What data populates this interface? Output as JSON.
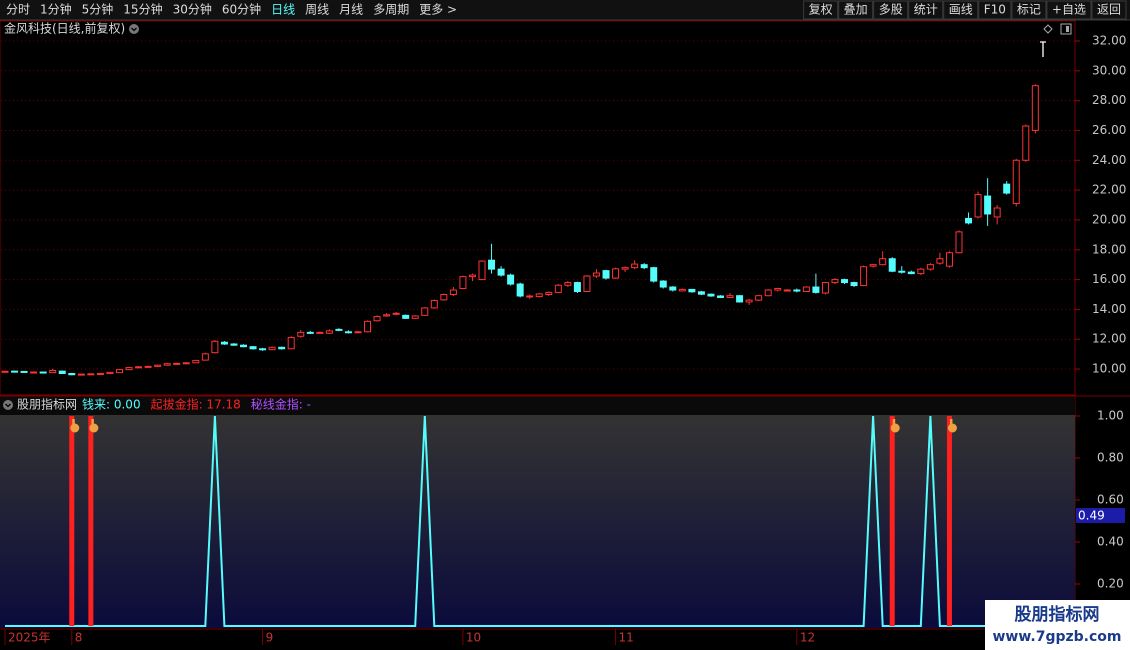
{
  "toolbar": {
    "left": [
      "分时",
      "1分钟",
      "5分钟",
      "15分钟",
      "30分钟",
      "60分钟",
      "日线",
      "周线",
      "月线",
      "多周期",
      "更多 >"
    ],
    "active_index": 6,
    "right": [
      "复权",
      "叠加",
      "多股",
      "统计",
      "画线",
      "F10",
      "标记",
      "+自选",
      "返回"
    ]
  },
  "chart_data": [
    {
      "type": "candlestick",
      "title": "金风科技(日线,前复权)",
      "categories": [
        "2025年",
        null,
        null,
        null,
        null,
        null,
        null,
        "8",
        null,
        null,
        null,
        null,
        null,
        null,
        null,
        null,
        null,
        null,
        null,
        null,
        null,
        null,
        null,
        null,
        null,
        null,
        null,
        "9",
        null,
        null,
        null,
        null,
        null,
        null,
        null,
        null,
        null,
        null,
        null,
        null,
        null,
        null,
        null,
        null,
        null,
        null,
        null,
        null,
        "10",
        null,
        null,
        null,
        null,
        null,
        null,
        null,
        null,
        null,
        null,
        null,
        null,
        null,
        null,
        null,
        "11",
        null,
        null,
        null,
        null,
        null,
        null,
        null,
        null,
        null,
        null,
        null,
        null,
        null,
        null,
        null,
        null,
        null,
        null,
        "12",
        null,
        null,
        null,
        null,
        null,
        null,
        null,
        null,
        null,
        null,
        null,
        null,
        null,
        null,
        null,
        null,
        null,
        null,
        null,
        null,
        null,
        null,
        null,
        null,
        null
      ],
      "ohlc": [
        [
          9.85,
          9.88,
          9.8,
          9.85
        ],
        [
          9.86,
          9.9,
          9.82,
          9.84
        ],
        [
          9.84,
          9.87,
          9.78,
          9.82
        ],
        [
          9.8,
          9.85,
          9.76,
          9.8
        ],
        [
          9.8,
          9.83,
          9.74,
          9.76
        ],
        [
          9.76,
          10.02,
          9.74,
          9.9
        ],
        [
          9.86,
          9.9,
          9.68,
          9.7
        ],
        [
          9.7,
          9.74,
          9.58,
          9.62
        ],
        [
          9.62,
          9.7,
          9.58,
          9.66
        ],
        [
          9.66,
          9.72,
          9.62,
          9.68
        ],
        [
          9.68,
          9.74,
          9.64,
          9.7
        ],
        [
          9.7,
          9.8,
          9.66,
          9.78
        ],
        [
          9.76,
          10.0,
          9.74,
          9.96
        ],
        [
          9.96,
          10.14,
          9.92,
          10.1
        ],
        [
          10.1,
          10.2,
          10.06,
          10.15
        ],
        [
          10.15,
          10.22,
          10.1,
          10.18
        ],
        [
          10.18,
          10.3,
          10.14,
          10.26
        ],
        [
          10.26,
          10.4,
          10.22,
          10.36
        ],
        [
          10.36,
          10.42,
          10.3,
          10.38
        ],
        [
          10.38,
          10.46,
          10.34,
          10.42
        ],
        [
          10.42,
          10.62,
          10.4,
          10.58
        ],
        [
          10.6,
          11.1,
          10.56,
          11.02
        ],
        [
          11.1,
          11.95,
          11.05,
          11.86
        ],
        [
          11.8,
          11.88,
          11.62,
          11.68
        ],
        [
          11.68,
          11.74,
          11.56,
          11.6
        ],
        [
          11.6,
          11.66,
          11.46,
          11.5
        ],
        [
          11.5,
          11.54,
          11.3,
          11.36
        ],
        [
          11.36,
          11.42,
          11.22,
          11.3
        ],
        [
          11.3,
          11.52,
          11.26,
          11.46
        ],
        [
          11.46,
          11.5,
          11.3,
          11.36
        ],
        [
          11.36,
          12.2,
          11.34,
          12.12
        ],
        [
          12.2,
          12.62,
          12.1,
          12.46
        ],
        [
          12.46,
          12.56,
          12.36,
          12.44
        ],
        [
          12.44,
          12.52,
          12.38,
          12.46
        ],
        [
          12.4,
          12.66,
          12.36,
          12.56
        ],
        [
          12.66,
          12.74,
          12.54,
          12.62
        ],
        [
          12.5,
          12.6,
          12.38,
          12.46
        ],
        [
          12.46,
          12.56,
          12.4,
          12.5
        ],
        [
          12.5,
          13.26,
          12.46,
          13.2
        ],
        [
          13.24,
          13.6,
          13.18,
          13.52
        ],
        [
          13.56,
          13.76,
          13.5,
          13.64
        ],
        [
          13.7,
          13.82,
          13.62,
          13.74
        ],
        [
          13.6,
          13.66,
          13.36,
          13.4
        ],
        [
          13.4,
          13.62,
          13.36,
          13.56
        ],
        [
          13.6,
          14.16,
          13.56,
          14.1
        ],
        [
          14.1,
          14.66,
          14.04,
          14.6
        ],
        [
          14.64,
          15.06,
          14.58,
          15.0
        ],
        [
          15.0,
          15.5,
          14.9,
          15.3
        ],
        [
          15.4,
          16.26,
          15.36,
          16.2
        ],
        [
          16.2,
          16.4,
          15.9,
          16.3
        ],
        [
          16.0,
          17.3,
          15.96,
          17.24
        ],
        [
          17.3,
          18.4,
          16.4,
          16.7
        ],
        [
          16.7,
          16.9,
          16.2,
          16.3
        ],
        [
          16.3,
          16.4,
          15.6,
          15.7
        ],
        [
          15.7,
          15.8,
          14.8,
          14.9
        ],
        [
          14.9,
          15.0,
          14.7,
          14.9
        ],
        [
          14.86,
          15.1,
          14.8,
          15.04
        ],
        [
          15.0,
          15.2,
          14.9,
          15.14
        ],
        [
          15.14,
          15.7,
          15.1,
          15.62
        ],
        [
          15.62,
          15.9,
          15.5,
          15.8
        ],
        [
          15.8,
          15.86,
          15.1,
          15.2
        ],
        [
          15.2,
          16.3,
          15.16,
          16.24
        ],
        [
          16.24,
          16.7,
          16.1,
          16.44
        ],
        [
          16.6,
          16.66,
          16.0,
          16.1
        ],
        [
          16.1,
          16.8,
          16.04,
          16.72
        ],
        [
          16.7,
          16.88,
          16.5,
          16.8
        ],
        [
          16.8,
          17.3,
          16.7,
          17.04
        ],
        [
          17.0,
          17.1,
          16.7,
          16.8
        ],
        [
          16.8,
          16.86,
          15.8,
          15.9
        ],
        [
          15.9,
          15.96,
          15.4,
          15.5
        ],
        [
          15.5,
          15.56,
          15.2,
          15.3
        ],
        [
          15.24,
          15.4,
          15.2,
          15.34
        ],
        [
          15.34,
          15.36,
          15.12,
          15.18
        ],
        [
          15.18,
          15.24,
          14.96,
          15.02
        ],
        [
          15.02,
          15.06,
          14.84,
          14.9
        ],
        [
          14.9,
          14.96,
          14.76,
          14.8
        ],
        [
          14.8,
          15.1,
          14.76,
          14.92
        ],
        [
          14.92,
          14.96,
          14.46,
          14.5
        ],
        [
          14.5,
          14.7,
          14.3,
          14.62
        ],
        [
          14.62,
          14.96,
          14.56,
          14.92
        ],
        [
          14.92,
          15.36,
          14.88,
          15.3
        ],
        [
          15.3,
          15.46,
          15.2,
          15.4
        ],
        [
          15.3,
          15.36,
          15.2,
          15.3
        ],
        [
          15.3,
          15.4,
          15.14,
          15.24
        ],
        [
          15.2,
          15.56,
          15.16,
          15.5
        ],
        [
          15.5,
          16.4,
          15.06,
          15.14
        ],
        [
          15.1,
          15.84,
          15.0,
          15.8
        ],
        [
          15.8,
          16.1,
          15.7,
          16.0
        ],
        [
          16.0,
          16.06,
          15.7,
          15.8
        ],
        [
          15.8,
          15.86,
          15.5,
          15.6
        ],
        [
          15.6,
          16.94,
          15.56,
          16.86
        ],
        [
          16.9,
          17.06,
          16.8,
          17.0
        ],
        [
          17.0,
          17.9,
          16.96,
          17.4
        ],
        [
          17.4,
          17.5,
          16.5,
          16.56
        ],
        [
          16.56,
          16.9,
          16.4,
          16.5
        ],
        [
          16.5,
          16.6,
          16.36,
          16.4
        ],
        [
          16.4,
          16.8,
          16.3,
          16.7
        ],
        [
          16.7,
          17.1,
          16.6,
          17.0
        ],
        [
          17.1,
          17.8,
          17.0,
          17.4
        ],
        [
          16.9,
          17.9,
          16.8,
          17.8
        ],
        [
          17.8,
          19.3,
          17.76,
          19.2
        ],
        [
          20.1,
          20.5,
          19.7,
          19.8
        ],
        [
          20.2,
          21.9,
          20.1,
          21.7
        ],
        [
          21.6,
          22.8,
          19.6,
          20.4
        ],
        [
          20.2,
          21.0,
          19.7,
          20.8
        ],
        [
          22.4,
          22.6,
          21.7,
          21.8
        ],
        [
          21.1,
          24.1,
          20.9,
          24.0
        ],
        [
          24.0,
          26.4,
          23.9,
          26.3
        ],
        [
          26.0,
          29.1,
          25.8,
          29.0
        ]
      ],
      "up_color": "#ff3232",
      "down_color": "#54fcfc",
      "ylim": [
        8.26,
        33.34
      ],
      "yticks": [
        {
          "value": 10,
          "label": "10.00"
        },
        {
          "value": 12,
          "label": "12.00"
        },
        {
          "value": 14,
          "label": "14.00"
        },
        {
          "value": 16,
          "label": "16.00"
        },
        {
          "value": 18,
          "label": "18.00"
        },
        {
          "value": 20,
          "label": "20.00"
        },
        {
          "value": 22,
          "label": "22.00"
        },
        {
          "value": 24,
          "label": "24.00"
        },
        {
          "value": 26,
          "label": "26.00"
        },
        {
          "value": 28,
          "label": "28.00"
        },
        {
          "value": 30,
          "label": "30.00"
        },
        {
          "value": 32,
          "label": "32.00"
        }
      ],
      "grid": true
    },
    {
      "type": "indicator",
      "title": "股朋指标网",
      "series": [
        {
          "name": "钱来: 0.00",
          "color": "#54fcfc",
          "style": "line",
          "values": [
            0,
            0,
            0,
            0,
            0,
            0,
            0,
            0,
            0,
            0,
            0,
            0,
            0,
            0,
            0,
            0,
            0,
            0,
            0,
            0,
            0,
            0,
            1,
            0,
            0,
            0,
            0,
            0,
            0,
            0,
            0,
            0,
            0,
            0,
            0,
            0,
            0,
            0,
            0,
            0,
            0,
            0,
            0,
            0,
            1,
            0,
            0,
            0,
            0,
            0,
            0,
            0,
            0,
            0,
            0,
            0,
            0,
            0,
            0,
            0,
            0,
            0,
            0,
            0,
            0,
            0,
            0,
            0,
            0,
            0,
            0,
            0,
            0,
            0,
            0,
            0,
            0,
            0,
            0,
            0,
            0,
            0,
            0,
            0,
            0,
            0,
            0,
            0,
            0,
            0,
            0,
            1,
            0,
            0,
            0,
            0,
            0,
            1,
            0,
            0,
            0,
            0,
            0,
            0,
            0,
            0,
            0,
            0,
            0
          ]
        },
        {
          "name": "起拔金指: 17.18",
          "color": "#ff2020",
          "style": "bar",
          "values": [
            0,
            0,
            0,
            0,
            0,
            0,
            0,
            1,
            0,
            1,
            0,
            0,
            0,
            0,
            0,
            0,
            0,
            0,
            0,
            0,
            0,
            0,
            0,
            0,
            0,
            0,
            0,
            0,
            0,
            0,
            0,
            0,
            0,
            0,
            0,
            0,
            0,
            0,
            0,
            0,
            0,
            0,
            0,
            0,
            0,
            0,
            0,
            0,
            0,
            0,
            0,
            0,
            0,
            0,
            0,
            0,
            0,
            0,
            0,
            0,
            0,
            0,
            0,
            0,
            0,
            0,
            0,
            0,
            0,
            0,
            0,
            0,
            0,
            0,
            0,
            0,
            0,
            0,
            0,
            0,
            0,
            0,
            0,
            0,
            0,
            0,
            0,
            0,
            0,
            0,
            0,
            0,
            0,
            1,
            0,
            0,
            0,
            0,
            0,
            1,
            0,
            0,
            0,
            0,
            0,
            0,
            0,
            0,
            0
          ]
        },
        {
          "name": "秘线金指: -",
          "color": "#b050ff"
        }
      ],
      "ylim": [
        -0.01,
        1.0
      ],
      "yticks": [
        {
          "value": 0.2,
          "label": "0.20"
        },
        {
          "value": 0.4,
          "label": "0.40"
        },
        {
          "value": 0.6,
          "label": "0.60"
        },
        {
          "value": 0.8,
          "label": "0.80"
        },
        {
          "value": 1.0,
          "label": "1.00"
        }
      ],
      "current_label": "0.49"
    }
  ],
  "watermark": {
    "title": "股朋指标网",
    "url": "www.7gpzb.com"
  }
}
